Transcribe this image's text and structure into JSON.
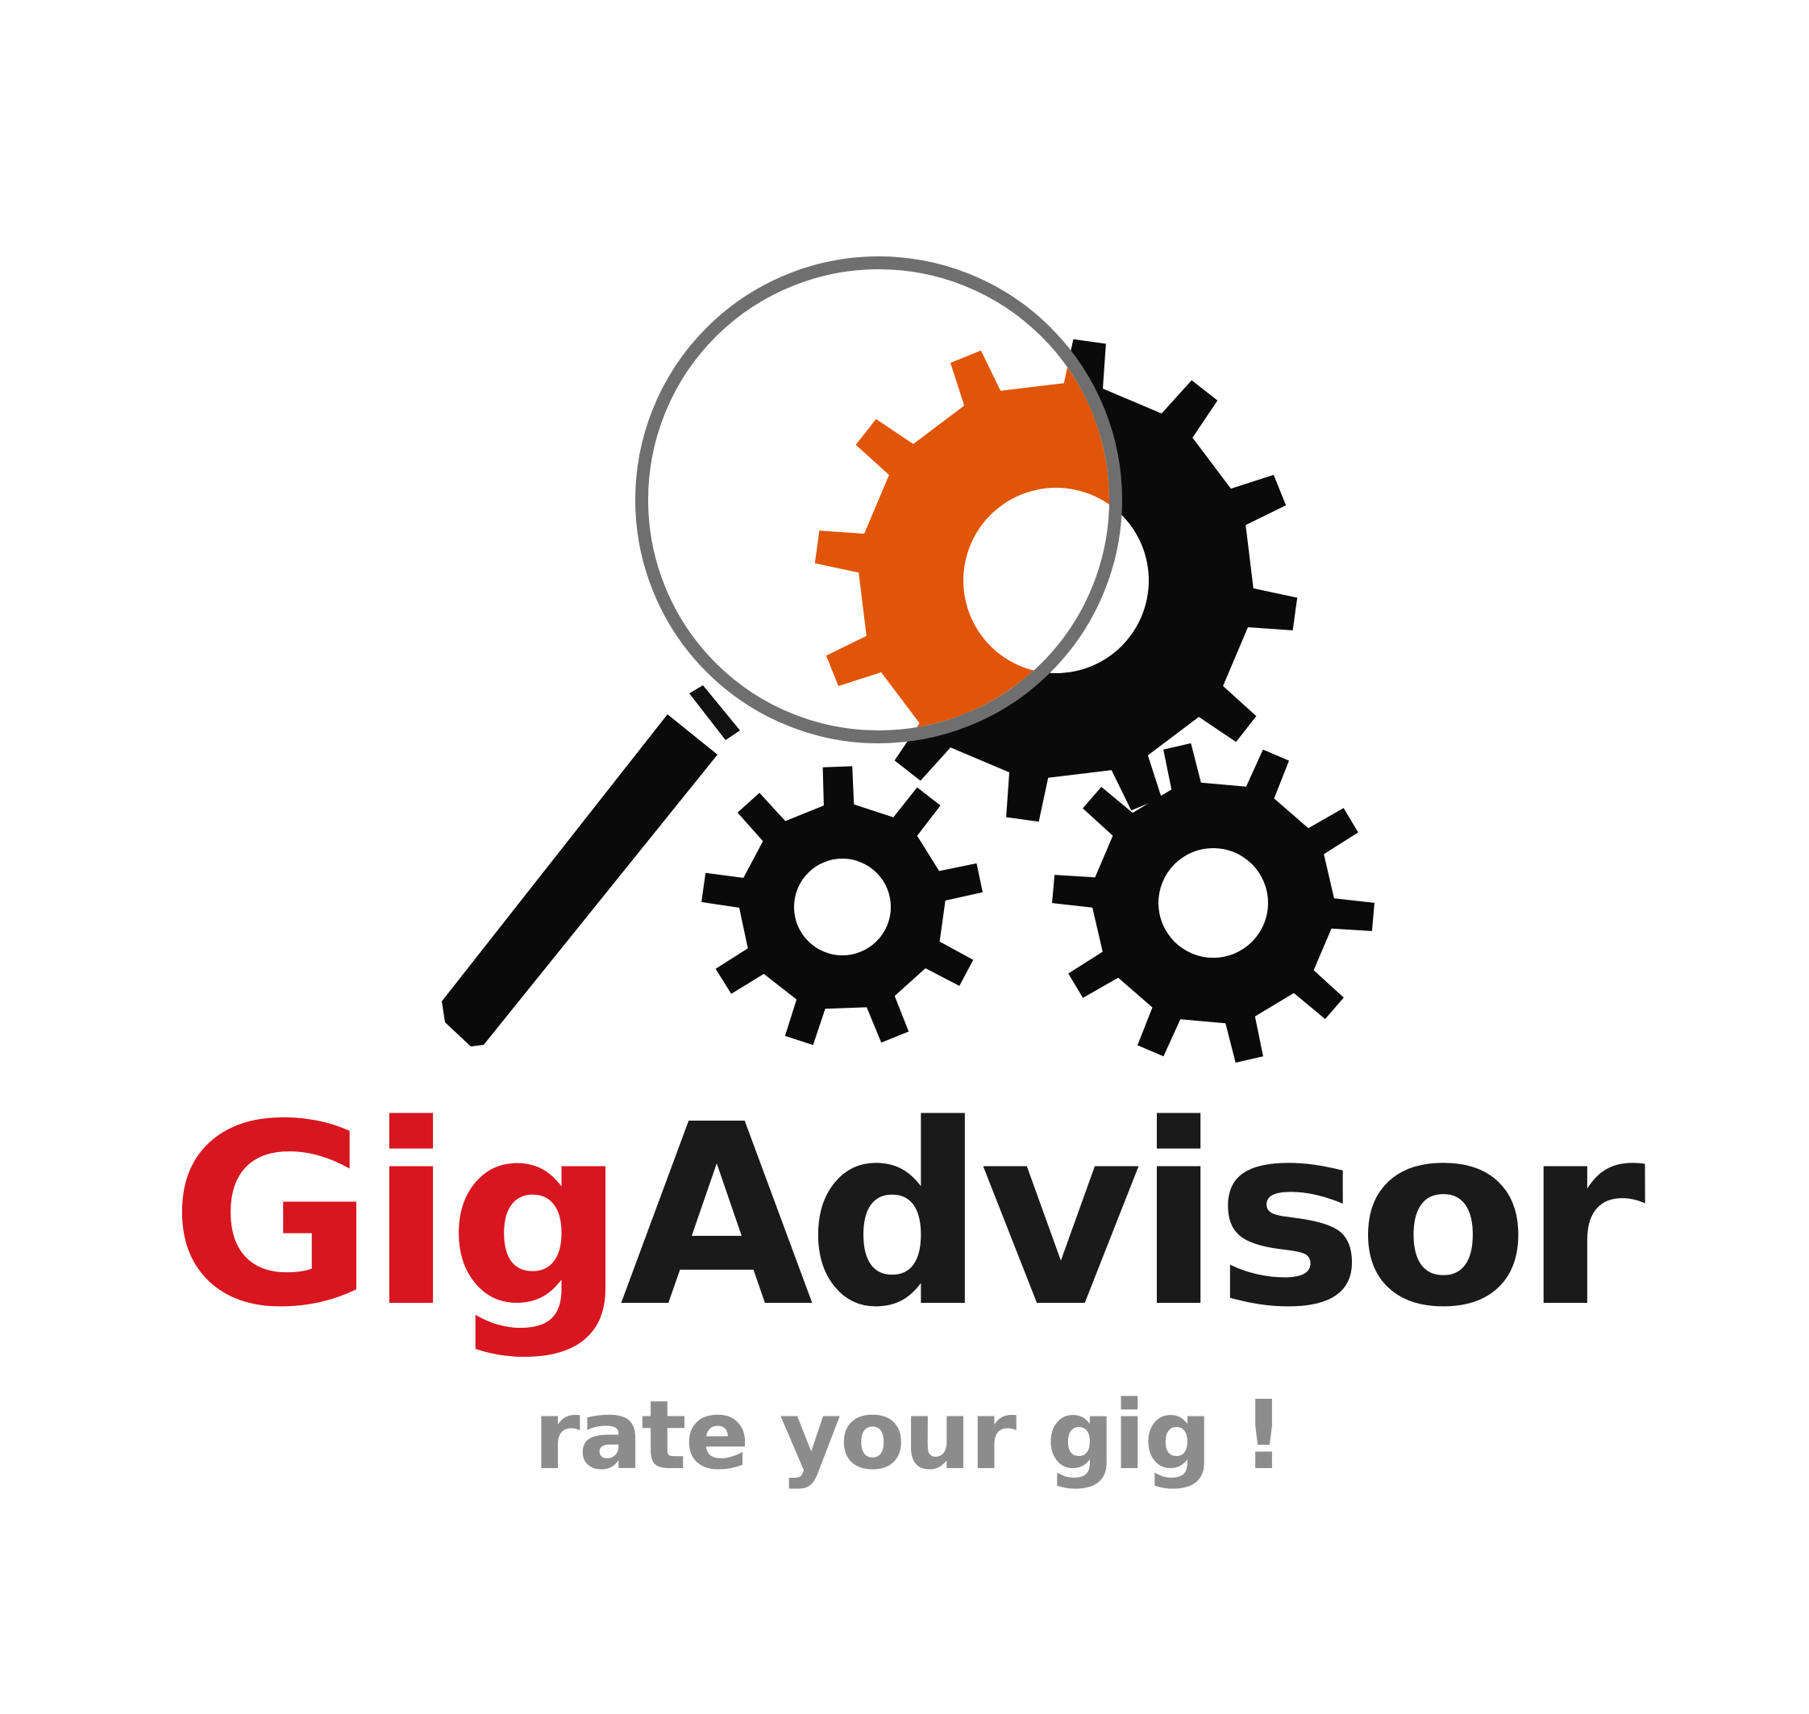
{
  "logo": {
    "brand_part_1": "Gig",
    "brand_part_2": "Advisor",
    "tagline": "rate your gig !"
  },
  "icons": {
    "magnifier": "magnifying-glass-icon",
    "highlight_gear": "orange-gear-icon",
    "large_gear": "large-black-gear-icon",
    "small_gears": [
      "small-black-gear-left-icon",
      "small-black-gear-right-icon"
    ]
  },
  "colors": {
    "background": "#ffffff",
    "brand_red": "#d8161f",
    "brand_black": "#1a1a1a",
    "gear_black": "#0a0a0a",
    "gear_orange": "#e05507",
    "lens_ring": "#6f6f6f",
    "tagline_gray": "#8c8c8c"
  }
}
